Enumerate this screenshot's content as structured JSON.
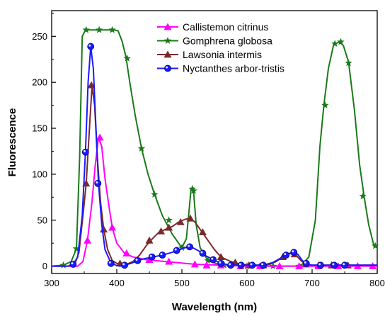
{
  "chart_data": {
    "type": "line",
    "xlabel": "Wavelength (nm)",
    "ylabel": "Fluorescence",
    "xlim": [
      300,
      800
    ],
    "ylim": [
      -8,
      278
    ],
    "xticks": [
      300,
      400,
      500,
      600,
      700,
      800
    ],
    "yticks": [
      0,
      50,
      100,
      150,
      200,
      250
    ],
    "grid": false,
    "legend_position": "top-right",
    "series": [
      {
        "name": "Callistemon citrinus",
        "color": "#ff00ff",
        "marker": "triangle",
        "line": [
          [
            300,
            0
          ],
          [
            340,
            0
          ],
          [
            348,
            5
          ],
          [
            355,
            28
          ],
          [
            362,
            70
          ],
          [
            367,
            110
          ],
          [
            372,
            140
          ],
          [
            377,
            130
          ],
          [
            382,
            95
          ],
          [
            388,
            65
          ],
          [
            393,
            42
          ],
          [
            400,
            25
          ],
          [
            412,
            14
          ],
          [
            425,
            10
          ],
          [
            445,
            7
          ],
          [
            475,
            5
          ],
          [
            520,
            2
          ],
          [
            560,
            1
          ],
          [
            600,
            0
          ],
          [
            700,
            0
          ],
          [
            800,
            0
          ]
        ],
        "markers": [
          [
            355,
            28
          ],
          [
            374,
            140
          ],
          [
            393,
            42
          ],
          [
            415,
            14
          ],
          [
            450,
            7
          ],
          [
            480,
            5
          ],
          [
            520,
            2
          ],
          [
            538,
            1
          ],
          [
            560,
            1
          ],
          [
            590,
            0
          ],
          [
            620,
            0
          ],
          [
            650,
            0
          ],
          [
            680,
            0
          ],
          [
            710,
            0
          ],
          [
            740,
            0
          ],
          [
            770,
            0
          ],
          [
            793,
            0
          ]
        ]
      },
      {
        "name": "Gomphrena globosa",
        "color": "#1a7a1a",
        "marker": "star",
        "line": [
          [
            300,
            0
          ],
          [
            318,
            1
          ],
          [
            330,
            5
          ],
          [
            338,
            19
          ],
          [
            343,
            120
          ],
          [
            347,
            250
          ],
          [
            352,
            257
          ],
          [
            395,
            257
          ],
          [
            402,
            256
          ],
          [
            408,
            245
          ],
          [
            414,
            228
          ],
          [
            420,
            200
          ],
          [
            428,
            165
          ],
          [
            438,
            128
          ],
          [
            448,
            100
          ],
          [
            458,
            78
          ],
          [
            470,
            55
          ],
          [
            485,
            35
          ],
          [
            500,
            20
          ],
          [
            507,
            30
          ],
          [
            511,
            60
          ],
          [
            514,
            84
          ],
          [
            518,
            80
          ],
          [
            522,
            45
          ],
          [
            528,
            20
          ],
          [
            540,
            6
          ],
          [
            560,
            1
          ],
          [
            620,
            0
          ],
          [
            675,
            0
          ],
          [
            685,
            2
          ],
          [
            695,
            10
          ],
          [
            705,
            50
          ],
          [
            712,
            130
          ],
          [
            718,
            175
          ],
          [
            725,
            215
          ],
          [
            733,
            241
          ],
          [
            742,
            244
          ],
          [
            748,
            240
          ],
          [
            756,
            222
          ],
          [
            765,
            170
          ],
          [
            773,
            110
          ],
          [
            780,
            75
          ],
          [
            787,
            45
          ],
          [
            795,
            22
          ],
          [
            800,
            20
          ]
        ],
        "markers": [
          [
            318,
            1
          ],
          [
            338,
            19
          ],
          [
            353,
            257
          ],
          [
            373,
            257
          ],
          [
            393,
            257
          ],
          [
            416,
            226
          ],
          [
            438,
            128
          ],
          [
            458,
            78
          ],
          [
            480,
            50
          ],
          [
            500,
            20
          ],
          [
            516,
            84
          ],
          [
            518,
            82
          ],
          [
            540,
            6
          ],
          [
            565,
            1
          ],
          [
            600,
            0
          ],
          [
            640,
            0
          ],
          [
            680,
            0
          ],
          [
            720,
            175
          ],
          [
            735,
            242
          ],
          [
            744,
            244
          ],
          [
            756,
            221
          ],
          [
            778,
            76
          ],
          [
            797,
            22
          ]
        ]
      },
      {
        "name": "Lawsonia intermis",
        "color": "#7b2a2a",
        "marker": "triangle",
        "line": [
          [
            300,
            0
          ],
          [
            328,
            0
          ],
          [
            336,
            3
          ],
          [
            342,
            15
          ],
          [
            348,
            55
          ],
          [
            353,
            90
          ],
          [
            358,
            150
          ],
          [
            362,
            196
          ],
          [
            366,
            175
          ],
          [
            370,
            120
          ],
          [
            375,
            70
          ],
          [
            380,
            40
          ],
          [
            386,
            18
          ],
          [
            393,
            6
          ],
          [
            400,
            3
          ],
          [
            415,
            2
          ],
          [
            425,
            5
          ],
          [
            435,
            12
          ],
          [
            445,
            22
          ],
          [
            455,
            30
          ],
          [
            465,
            37
          ],
          [
            475,
            40
          ],
          [
            485,
            43
          ],
          [
            495,
            48
          ],
          [
            505,
            51
          ],
          [
            513,
            52
          ],
          [
            520,
            48
          ],
          [
            528,
            40
          ],
          [
            538,
            30
          ],
          [
            550,
            18
          ],
          [
            560,
            10
          ],
          [
            575,
            5
          ],
          [
            590,
            2
          ],
          [
            610,
            1
          ],
          [
            625,
            1
          ],
          [
            635,
            2
          ],
          [
            645,
            5
          ],
          [
            655,
            10
          ],
          [
            665,
            14
          ],
          [
            675,
            12
          ],
          [
            683,
            6
          ],
          [
            690,
            2
          ],
          [
            700,
            1
          ],
          [
            800,
            1
          ]
        ],
        "markers": [
          [
            353,
            90
          ],
          [
            361,
            197
          ],
          [
            380,
            40
          ],
          [
            405,
            3
          ],
          [
            450,
            28
          ],
          [
            468,
            38
          ],
          [
            480,
            42
          ],
          [
            498,
            48
          ],
          [
            513,
            52
          ],
          [
            532,
            37
          ],
          [
            560,
            10
          ],
          [
            582,
            4
          ],
          [
            603,
            1
          ],
          [
            625,
            1
          ],
          [
            655,
            10
          ],
          [
            673,
            13
          ],
          [
            690,
            2
          ],
          [
            710,
            1
          ],
          [
            730,
            1
          ],
          [
            755,
            1
          ]
        ]
      },
      {
        "name": "Nyctanthes arbor-tristis",
        "color": "#1a1aff",
        "marker": "sphere",
        "line": [
          [
            300,
            0
          ],
          [
            325,
            0
          ],
          [
            333,
            2
          ],
          [
            340,
            10
          ],
          [
            347,
            55
          ],
          [
            352,
            125
          ],
          [
            356,
            200
          ],
          [
            360,
            239
          ],
          [
            364,
            215
          ],
          [
            368,
            150
          ],
          [
            372,
            90
          ],
          [
            377,
            45
          ],
          [
            382,
            18
          ],
          [
            390,
            5
          ],
          [
            398,
            1
          ],
          [
            405,
            0
          ],
          [
            412,
            1
          ],
          [
            422,
            3
          ],
          [
            432,
            6
          ],
          [
            442,
            8
          ],
          [
            455,
            10
          ],
          [
            470,
            12
          ],
          [
            485,
            15
          ],
          [
            500,
            19
          ],
          [
            510,
            21
          ],
          [
            517,
            20
          ],
          [
            525,
            17
          ],
          [
            535,
            12
          ],
          [
            548,
            7
          ],
          [
            560,
            3
          ],
          [
            575,
            1
          ],
          [
            590,
            1
          ],
          [
            600,
            1
          ],
          [
            615,
            1
          ],
          [
            630,
            2
          ],
          [
            640,
            4
          ],
          [
            650,
            8
          ],
          [
            658,
            12
          ],
          [
            666,
            14
          ],
          [
            672,
            15
          ],
          [
            678,
            13
          ],
          [
            685,
            6
          ],
          [
            692,
            2
          ],
          [
            700,
            1
          ],
          [
            800,
            1
          ]
        ],
        "markers": [
          [
            333,
            2
          ],
          [
            352,
            124
          ],
          [
            360,
            239
          ],
          [
            371,
            90
          ],
          [
            391,
            3
          ],
          [
            412,
            1
          ],
          [
            432,
            6
          ],
          [
            454,
            10
          ],
          [
            470,
            12
          ],
          [
            492,
            17
          ],
          [
            512,
            21
          ],
          [
            532,
            14
          ],
          [
            548,
            7
          ],
          [
            560,
            3
          ],
          [
            575,
            1
          ],
          [
            591,
            1
          ],
          [
            608,
            1
          ],
          [
            625,
            1
          ],
          [
            660,
            12
          ],
          [
            672,
            15
          ],
          [
            691,
            3
          ],
          [
            713,
            1
          ],
          [
            734,
            1
          ],
          [
            750,
            1
          ]
        ]
      }
    ]
  }
}
